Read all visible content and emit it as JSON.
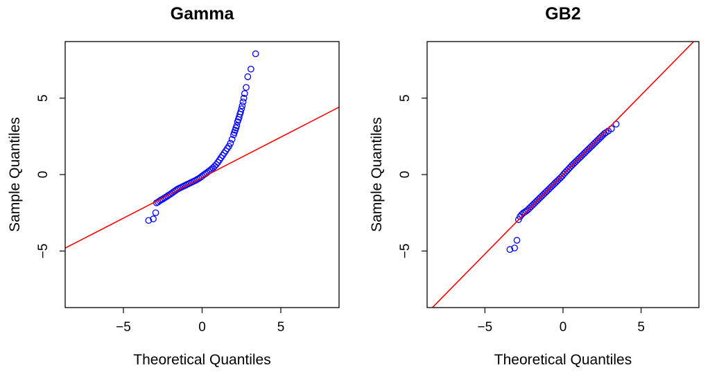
{
  "chart_data": [
    {
      "type": "scatter",
      "title": "Gamma",
      "xlabel": "Theoretical Quantiles",
      "ylabel": "Sample Quantiles",
      "xlim": [
        -8.7,
        8.7
      ],
      "ylim": [
        -8.7,
        8.7
      ],
      "xticks": [
        -5,
        0,
        5
      ],
      "yticks": [
        -5,
        0,
        5
      ],
      "grid": false,
      "point_color": "#0000ff",
      "line_color": "#ff0000",
      "reference_line": {
        "intercept": -0.2,
        "slope": 0.53
      },
      "points": {
        "x": [
          -3.4,
          -3.1,
          -2.95,
          -2.9,
          -2.8,
          -2.7,
          -2.6,
          -2.5,
          -2.4,
          -2.3,
          -2.2,
          -2.1,
          -2.0,
          -1.9,
          -1.8,
          -1.7,
          -1.6,
          -1.5,
          -1.4,
          -1.3,
          -1.2,
          -1.1,
          -1.0,
          -0.9,
          -0.8,
          -0.7,
          -0.6,
          -0.5,
          -0.4,
          -0.3,
          -0.2,
          -0.1,
          0.0,
          0.1,
          0.2,
          0.3,
          0.4,
          0.5,
          0.6,
          0.7,
          0.8,
          0.9,
          1.0,
          1.1,
          1.2,
          1.3,
          1.4,
          1.5,
          1.6,
          1.7,
          1.8,
          1.9,
          2.0,
          2.05,
          2.1,
          2.15,
          2.2,
          2.25,
          2.3,
          2.35,
          2.4,
          2.45,
          2.5,
          2.55,
          2.6,
          2.65,
          2.7,
          2.8,
          2.9,
          3.1,
          3.4
        ],
        "y": [
          -3.0,
          -2.9,
          -2.5,
          -1.85,
          -1.8,
          -1.72,
          -1.65,
          -1.6,
          -1.53,
          -1.47,
          -1.4,
          -1.33,
          -1.27,
          -1.2,
          -1.12,
          -1.05,
          -0.98,
          -0.92,
          -0.87,
          -0.82,
          -0.77,
          -0.72,
          -0.67,
          -0.62,
          -0.57,
          -0.52,
          -0.47,
          -0.42,
          -0.37,
          -0.31,
          -0.25,
          -0.18,
          -0.1,
          -0.02,
          0.05,
          0.12,
          0.2,
          0.28,
          0.36,
          0.45,
          0.55,
          0.66,
          0.8,
          0.95,
          1.1,
          1.25,
          1.4,
          1.55,
          1.7,
          1.85,
          2.05,
          2.3,
          2.6,
          2.75,
          2.9,
          3.05,
          3.2,
          3.45,
          3.6,
          3.75,
          3.95,
          4.1,
          4.3,
          4.5,
          4.75,
          5.0,
          5.3,
          5.7,
          6.4,
          6.9,
          7.9
        ]
      }
    },
    {
      "type": "scatter",
      "title": "GB2",
      "xlabel": "Theoretical Quantiles",
      "ylabel": "Sample Quantiles",
      "xlim": [
        -8.7,
        8.7
      ],
      "ylim": [
        -8.7,
        8.7
      ],
      "xticks": [
        -5,
        0,
        5
      ],
      "yticks": [
        -5,
        0,
        5
      ],
      "grid": false,
      "point_color": "#0000ff",
      "line_color": "#ff0000",
      "reference_line": {
        "intercept": 0.0,
        "slope": 1.04
      },
      "points": {
        "x": [
          -3.4,
          -3.1,
          -2.95,
          -2.85,
          -2.75,
          -2.65,
          -2.55,
          -2.45,
          -2.35,
          -2.25,
          -2.15,
          -2.05,
          -1.95,
          -1.85,
          -1.75,
          -1.65,
          -1.55,
          -1.45,
          -1.35,
          -1.25,
          -1.15,
          -1.05,
          -0.95,
          -0.85,
          -0.75,
          -0.65,
          -0.55,
          -0.45,
          -0.35,
          -0.25,
          -0.15,
          -0.05,
          0.05,
          0.15,
          0.25,
          0.35,
          0.45,
          0.55,
          0.65,
          0.75,
          0.85,
          0.95,
          1.05,
          1.15,
          1.25,
          1.35,
          1.45,
          1.55,
          1.65,
          1.75,
          1.85,
          1.95,
          2.05,
          2.15,
          2.25,
          2.35,
          2.45,
          2.55,
          2.65,
          2.75,
          2.9,
          3.1,
          3.4
        ],
        "y": [
          -4.9,
          -4.8,
          -4.3,
          -2.95,
          -2.75,
          -2.62,
          -2.52,
          -2.45,
          -2.38,
          -2.3,
          -2.2,
          -2.1,
          -2.0,
          -1.9,
          -1.8,
          -1.7,
          -1.6,
          -1.5,
          -1.4,
          -1.3,
          -1.2,
          -1.1,
          -1.0,
          -0.9,
          -0.8,
          -0.7,
          -0.6,
          -0.5,
          -0.4,
          -0.3,
          -0.2,
          -0.1,
          0.03,
          0.14,
          0.25,
          0.36,
          0.47,
          0.58,
          0.68,
          0.78,
          0.88,
          0.98,
          1.08,
          1.18,
          1.28,
          1.38,
          1.48,
          1.58,
          1.68,
          1.78,
          1.88,
          1.98,
          2.08,
          2.18,
          2.28,
          2.38,
          2.48,
          2.58,
          2.68,
          2.75,
          2.85,
          3.0,
          3.3
        ]
      }
    }
  ]
}
